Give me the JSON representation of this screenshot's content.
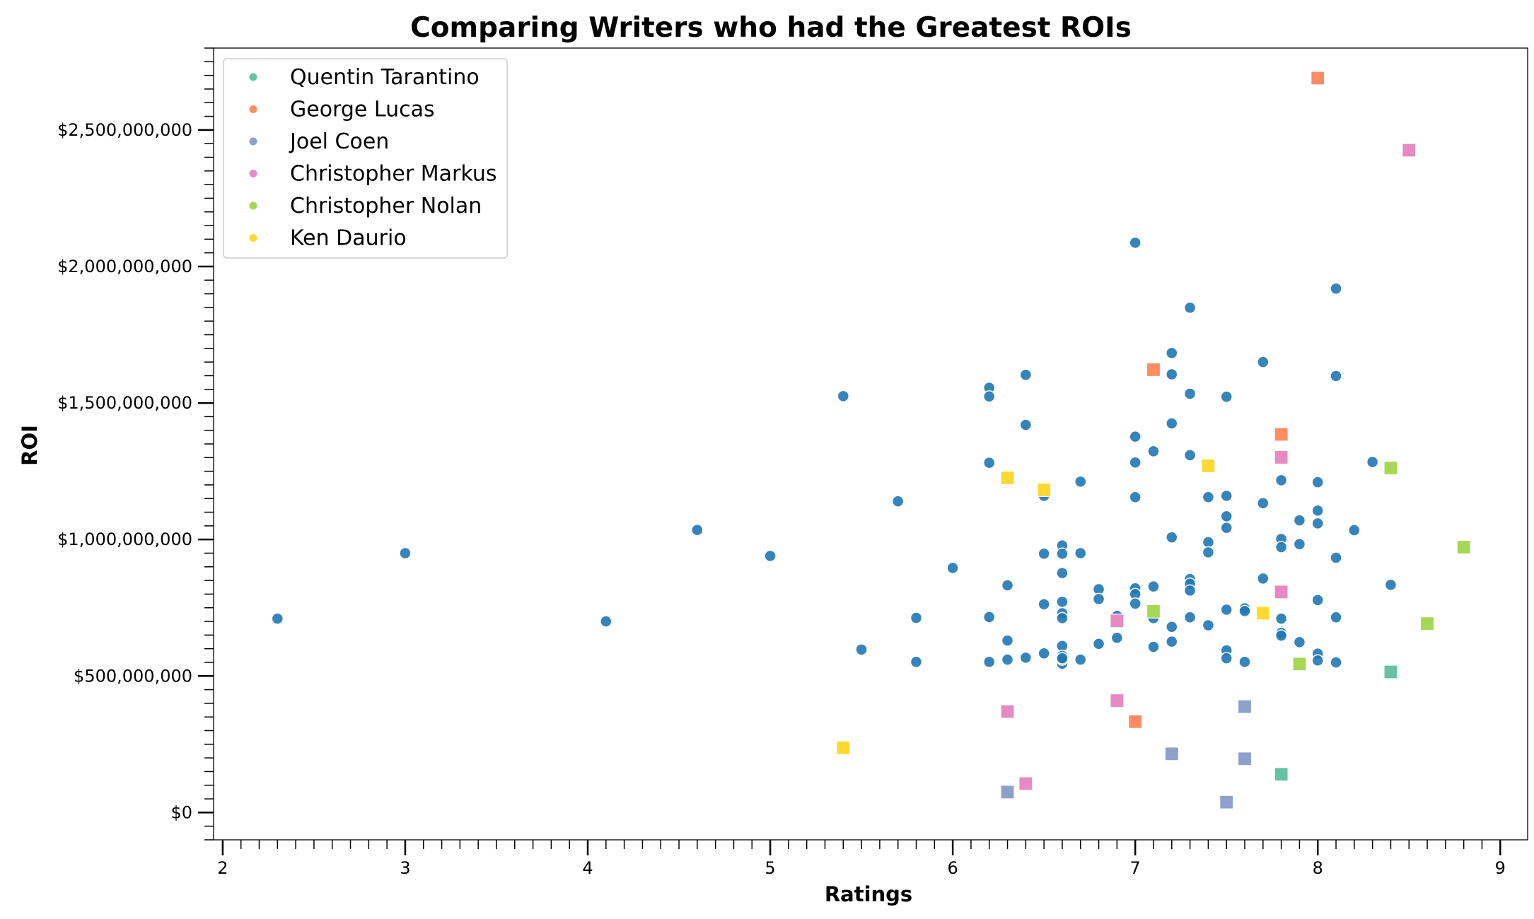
{
  "chart_data": {
    "type": "scatter",
    "title": "Comparing Writers who had the Greatest ROIs",
    "xlabel": "Ratings",
    "ylabel": "ROI",
    "xlim": [
      1.95,
      9.15
    ],
    "ylim": [
      -100000000,
      2800000000
    ],
    "xticks": [
      2,
      3,
      4,
      5,
      6,
      7,
      8,
      9
    ],
    "xtick_labels": [
      "2",
      "3",
      "4",
      "5",
      "6",
      "7",
      "8",
      "9"
    ],
    "yticks": [
      0,
      500000000,
      1000000000,
      1500000000,
      2000000000,
      2500000000
    ],
    "ytick_labels": [
      "$0",
      "$500,000,000",
      "$1,000,000,000",
      "$1,500,000,000",
      "$2,000,000,000",
      "$2,500,000,000"
    ],
    "grid": false,
    "legend": {
      "position": "top-left"
    },
    "background_points": {
      "color": "#1f77b4",
      "marker": "circle",
      "x": [
        2.3,
        3.0,
        4.1,
        4.6,
        5.0,
        5.4,
        5.5,
        5.7,
        5.8,
        5.8,
        6.0,
        6.2,
        6.2,
        6.2,
        6.2,
        6.2,
        6.3,
        6.3,
        6.3,
        6.4,
        6.4,
        6.4,
        6.5,
        6.5,
        6.5,
        6.5,
        6.6,
        6.6,
        6.6,
        6.6,
        6.6,
        6.6,
        6.6,
        6.6,
        6.6,
        6.6,
        6.6,
        6.7,
        6.7,
        6.7,
        6.8,
        6.8,
        6.8,
        6.9,
        6.9,
        7.0,
        7.0,
        7.0,
        7.0,
        7.0,
        7.0,
        7.0,
        7.1,
        7.1,
        7.1,
        7.1,
        7.2,
        7.2,
        7.2,
        7.2,
        7.2,
        7.2,
        7.3,
        7.3,
        7.3,
        7.3,
        7.3,
        7.3,
        7.3,
        7.4,
        7.4,
        7.4,
        7.4,
        7.5,
        7.5,
        7.5,
        7.5,
        7.5,
        7.5,
        7.5,
        7.6,
        7.6,
        7.6,
        7.7,
        7.7,
        7.7,
        7.8,
        7.8,
        7.8,
        7.8,
        7.8,
        7.8,
        7.9,
        7.9,
        7.9,
        8.0,
        8.0,
        8.0,
        8.0,
        8.0,
        8.0,
        8.1,
        8.1,
        8.1,
        8.1,
        8.1,
        8.2,
        8.3,
        8.4
      ],
      "y": [
        710000000,
        950000000,
        700000000,
        1035000000,
        940000000,
        1525000000,
        597000000,
        1140000000,
        713000000,
        552000000,
        896000000,
        1556000000,
        1524000000,
        1281000000,
        716000000,
        552000000,
        832000000,
        630000000,
        560000000,
        1603000000,
        1420000000,
        567000000,
        1160000000,
        948000000,
        763000000,
        583000000,
        978000000,
        948000000,
        877000000,
        772000000,
        730000000,
        712000000,
        610000000,
        574000000,
        545000000,
        560000000,
        565000000,
        1212000000,
        950000000,
        560000000,
        818000000,
        782000000,
        618000000,
        720000000,
        640000000,
        2087000000,
        1377000000,
        1282000000,
        1155000000,
        821000000,
        800000000,
        765000000,
        1323000000,
        828000000,
        712000000,
        607000000,
        1683000000,
        1605000000,
        1425000000,
        1008000000,
        680000000,
        626000000,
        1849000000,
        1534000000,
        1309000000,
        855000000,
        838000000,
        813000000,
        715000000,
        1155000000,
        990000000,
        953000000,
        686000000,
        1523000000,
        1160000000,
        1085000000,
        1043000000,
        743000000,
        594000000,
        565000000,
        748000000,
        738000000,
        552000000,
        1650000000,
        1133000000,
        857000000,
        1217000000,
        1002000000,
        972000000,
        710000000,
        658000000,
        648000000,
        1070000000,
        983000000,
        624000000,
        1210000000,
        1106000000,
        1059000000,
        778000000,
        582000000,
        557000000,
        1919000000,
        1599000000,
        933000000,
        715000000,
        550000000,
        1034000000,
        1284000000,
        834000000
      ]
    },
    "series": [
      {
        "name": "Quentin Tarantino",
        "color": "#66c2a5",
        "x": [
          7.8,
          8.4
        ],
        "y": [
          140000000,
          515000000
        ]
      },
      {
        "name": "George Lucas",
        "color": "#fc8d62",
        "x": [
          8.0,
          7.1,
          7.8,
          7.0
        ],
        "y": [
          2690000000,
          1622000000,
          1385000000,
          333000000
        ]
      },
      {
        "name": "Joel Coen",
        "color": "#8da0cb",
        "x": [
          6.3,
          7.5,
          7.2,
          7.6,
          7.6
        ],
        "y": [
          75000000,
          38000000,
          215000000,
          197000000,
          388000000
        ]
      },
      {
        "name": "Christopher Markus",
        "color": "#e78ac3",
        "x": [
          8.5,
          7.8,
          7.8,
          6.9,
          6.9,
          6.3,
          6.4
        ],
        "y": [
          2426000000,
          1301000000,
          808000000,
          702000000,
          410000000,
          370000000,
          106000000
        ]
      },
      {
        "name": "Christopher Nolan",
        "color": "#a6d854",
        "x": [
          8.4,
          8.8,
          7.1,
          8.6,
          7.9
        ],
        "y": [
          1262000000,
          972000000,
          737000000,
          692000000,
          544000000
        ]
      },
      {
        "name": "Ken Daurio",
        "color": "#ffd92f",
        "x": [
          6.3,
          6.5,
          7.4,
          7.7,
          5.4
        ],
        "y": [
          1226000000,
          1182000000,
          1270000000,
          730000000,
          237000000
        ]
      }
    ]
  }
}
